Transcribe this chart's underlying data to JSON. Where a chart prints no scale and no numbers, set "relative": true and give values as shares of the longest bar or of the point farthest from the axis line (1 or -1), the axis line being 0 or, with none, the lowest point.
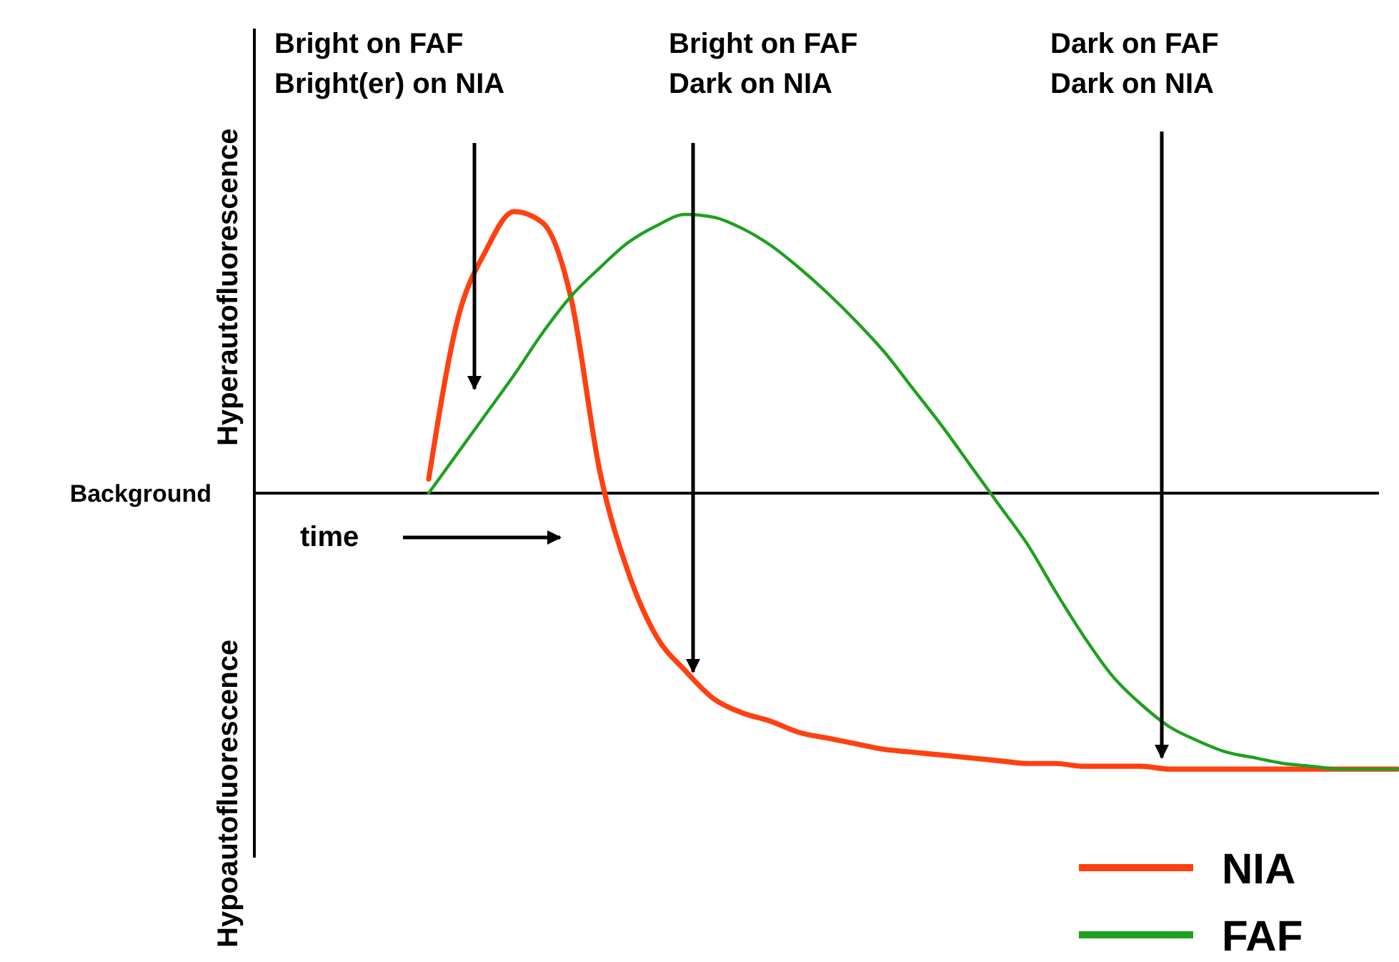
{
  "chart_data": {
    "type": "line",
    "relative": true,
    "categories": [
      null,
      null,
      null,
      null,
      null,
      null,
      null,
      null,
      null,
      null,
      null,
      null,
      null,
      null,
      null,
      null,
      null,
      null,
      null,
      null,
      null,
      null,
      null,
      null,
      null,
      null,
      null,
      null,
      null,
      null,
      null,
      null,
      null,
      null,
      null
    ],
    "series": [
      {
        "name": "NIA",
        "color": "#ff4010",
        "values": [
          0.05,
          0.61,
          0.86,
          1,
          0.96,
          0.69,
          0.08,
          -0.28,
          -0.51,
          -0.63,
          -0.73,
          -0.78,
          -0.81,
          -0.85,
          -0.87,
          -0.89,
          -0.91,
          -0.92,
          -0.93,
          -0.94,
          -0.95,
          -0.96,
          -0.96,
          -0.97,
          -0.97,
          -0.97,
          -0.98,
          -0.98,
          -0.98,
          -0.98,
          -0.98,
          -0.98,
          -0.98,
          -0.98,
          -0.98
        ]
      },
      {
        "name": "FAF",
        "color": "#1fa01f",
        "values": [
          0,
          0.14,
          0.28,
          0.42,
          0.57,
          0.7,
          0.8,
          0.89,
          0.95,
          0.99,
          0.98,
          0.94,
          0.88,
          0.8,
          0.71,
          0.61,
          0.5,
          0.37,
          0.24,
          0.1,
          -0.04,
          -0.18,
          -0.35,
          -0.51,
          -0.65,
          -0.75,
          -0.83,
          -0.88,
          -0.92,
          -0.94,
          -0.96,
          -0.97,
          -0.98,
          -0.98,
          -0.98
        ]
      }
    ],
    "ref_lines": [
      {
        "axis": "y",
        "value": 0,
        "label": "Background"
      }
    ],
    "annotations": [
      "Bright on FAF\nBright(er) on NIA",
      "Bright on FAF\nDark  on NIA",
      "Dark on FAF\nDark on NIA",
      "time",
      "Hyperautofluorescence",
      "Hypoautofluorescence"
    ],
    "legend": "bottom right",
    "line_style": "solid",
    "marker": "none"
  }
}
